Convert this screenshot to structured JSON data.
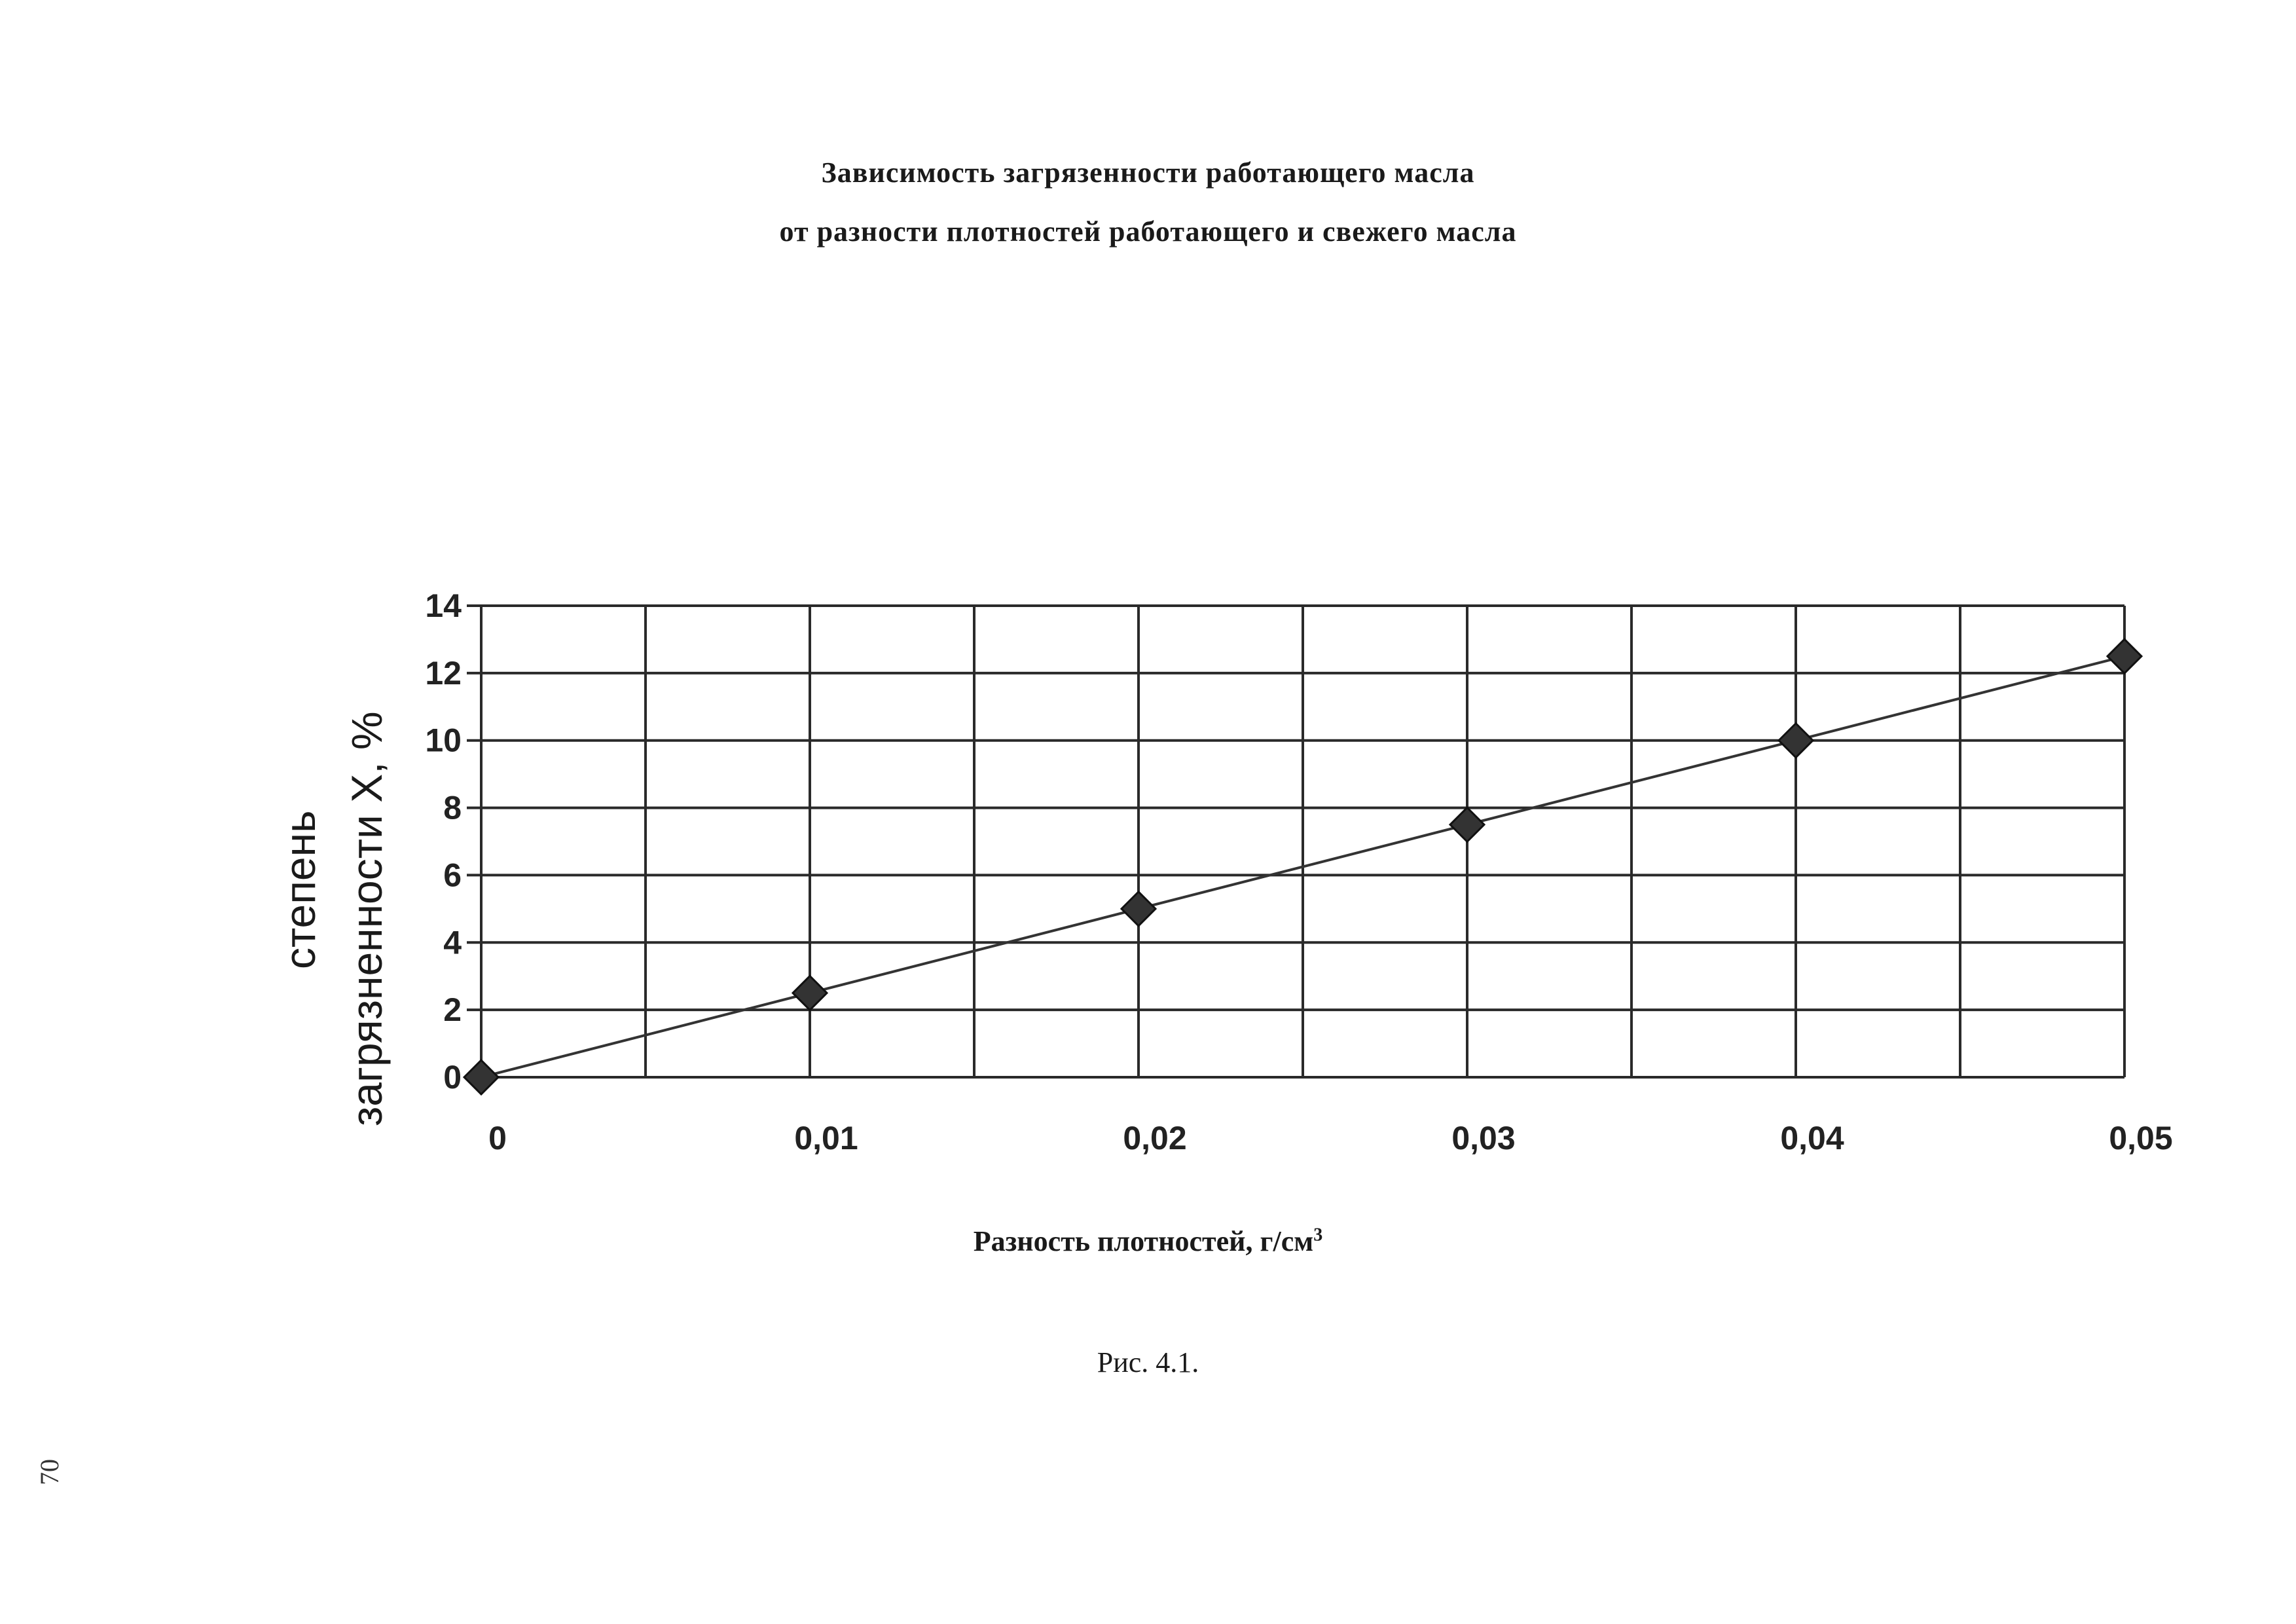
{
  "title": {
    "line1": "Зависимость загрязенности работающего масла",
    "line2": "от разности плотностей работающего и свежего масла"
  },
  "chart_data": {
    "type": "line",
    "x": [
      0,
      0.01,
      0.02,
      0.03,
      0.04,
      0.05
    ],
    "series": [
      {
        "values": [
          0,
          2.5,
          5,
          7.5,
          10,
          12.5
        ],
        "marker": "diamond",
        "color": "#333333"
      }
    ],
    "x_tick_labels": [
      "0",
      "0,01",
      "0,02",
      "0,03",
      "0,04",
      "0,05"
    ],
    "y_tick_labels": [
      "0",
      "2",
      "4",
      "6",
      "8",
      "10",
      "12",
      "14"
    ],
    "xlim": [
      0,
      0.05
    ],
    "ylim": [
      0,
      14
    ],
    "grid": true,
    "xlabel": "Разность плотностей, г/см",
    "xlabel_superscript": "3",
    "ylabel_line1": "степень",
    "ylabel_line2": "загрязненности X, %"
  },
  "caption": "Рис. 4.1.",
  "page_mark": "70"
}
